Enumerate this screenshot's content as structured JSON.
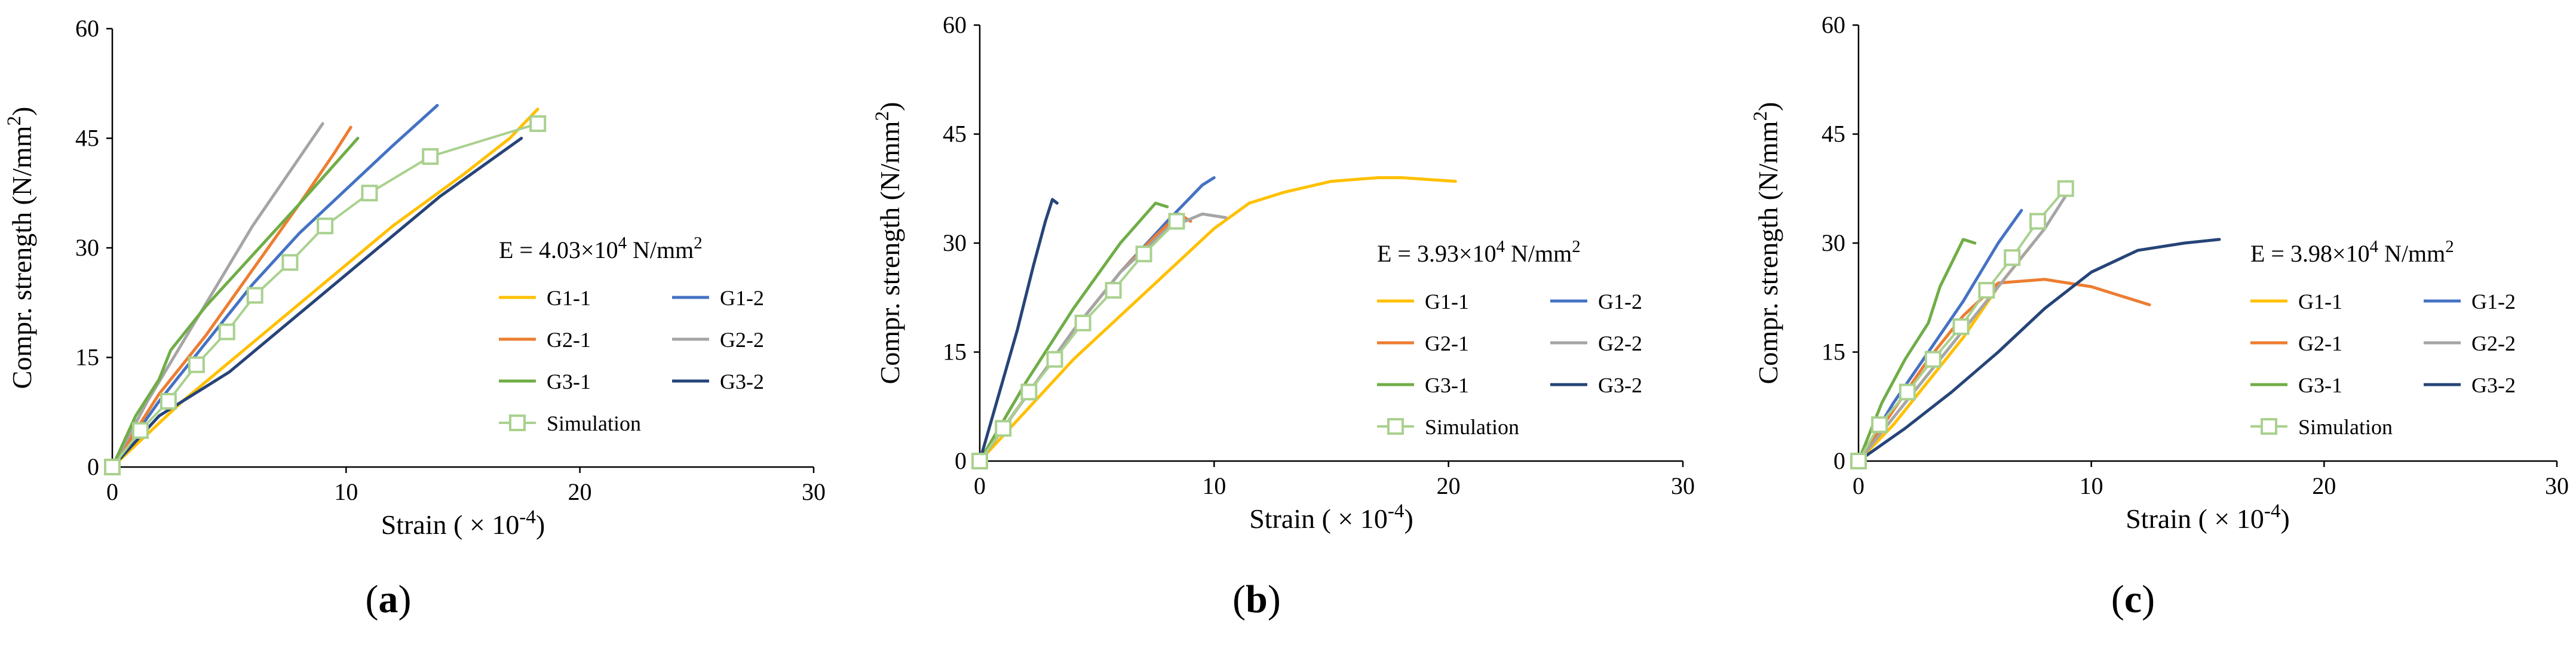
{
  "chart_data": [
    {
      "type": "line",
      "panel_label": "(a)",
      "xlabel": "Strain ( × 10-4)",
      "ylabel": "Compr. strength (N/mm2)",
      "xlim": [
        0,
        30
      ],
      "ylim": [
        0,
        60
      ],
      "xticks": [
        0,
        10,
        20,
        30
      ],
      "yticks": [
        0,
        15,
        30,
        45,
        60
      ],
      "annotation": "E = 4.03×104 N/mm2",
      "legend_position": "bottom-right",
      "series": [
        {
          "name": "G1-1",
          "color": "#FFC000",
          "x": [
            0,
            3,
            6,
            9,
            12,
            15,
            17,
            18.2
          ],
          "y": [
            0,
            9,
            17,
            25,
            33,
            40,
            45,
            49
          ]
        },
        {
          "name": "G1-2",
          "color": "#4472C4",
          "x": [
            0,
            2,
            4,
            6,
            8,
            10,
            12,
            13.9
          ],
          "y": [
            0,
            9,
            17,
            25,
            32,
            38,
            44,
            49.5
          ]
        },
        {
          "name": "G2-1",
          "color": "#ED7D31",
          "x": [
            0,
            2,
            4,
            6,
            8,
            9.5,
            10.2
          ],
          "y": [
            0,
            10,
            18,
            27,
            36,
            43,
            46.5
          ]
        },
        {
          "name": "G2-2",
          "color": "#A5A5A5",
          "x": [
            0,
            1.5,
            3,
            4.5,
            6,
            7.5,
            9
          ],
          "y": [
            0,
            9,
            17,
            25,
            33,
            40,
            47
          ]
        },
        {
          "name": "G3-1",
          "color": "#70AD47",
          "x": [
            0,
            1,
            2,
            2.5,
            4,
            6,
            8,
            10.5
          ],
          "y": [
            0,
            7,
            12,
            16,
            22,
            29,
            36,
            45
          ]
        },
        {
          "name": "G3-2",
          "color": "#264478",
          "x": [
            0,
            2,
            5,
            8,
            11,
            14,
            17.5
          ],
          "y": [
            0,
            7,
            13,
            21,
            29,
            37,
            45
          ]
        },
        {
          "name": "Simulation",
          "color": "#A9D18E",
          "marker": "square",
          "x": [
            0,
            1.2,
            2.4,
            3.6,
            4.9,
            6.1,
            7.6,
            9.1,
            11,
            13.6,
            18.2
          ],
          "y": [
            0,
            5,
            9,
            14,
            18.5,
            23.5,
            28,
            33,
            37.5,
            42.5,
            47
          ]
        }
      ]
    },
    {
      "type": "line",
      "panel_label": "(b)",
      "xlabel": "Strain ( × 10-4)",
      "ylabel": "Compr. strength (N/mm2)",
      "xlim": [
        0,
        30
      ],
      "ylim": [
        0,
        60
      ],
      "xticks": [
        0,
        10,
        20,
        30
      ],
      "yticks": [
        0,
        15,
        30,
        45,
        60
      ],
      "annotation": "E = 3.93×104 N/mm2",
      "legend_position": "bottom-right",
      "series": [
        {
          "name": "G1-1",
          "color": "#FFC000",
          "x": [
            0,
            2,
            4,
            6,
            8,
            9,
            10,
            11.5,
            13,
            15,
            17,
            18,
            20.3
          ],
          "y": [
            0,
            7,
            14,
            20,
            26,
            29,
            32,
            35.5,
            37,
            38.5,
            39,
            39,
            38.5
          ]
        },
        {
          "name": "G1-2",
          "color": "#4472C4",
          "x": [
            0,
            2,
            4,
            6,
            8,
            9.5,
            10
          ],
          "y": [
            0,
            9,
            18,
            26,
            33,
            38,
            39
          ]
        },
        {
          "name": "G2-1",
          "color": "#ED7D31",
          "x": [
            0,
            2,
            4,
            6,
            7.5,
            8.5,
            9
          ],
          "y": [
            0,
            9,
            18,
            26,
            31,
            34,
            33
          ]
        },
        {
          "name": "G2-2",
          "color": "#A5A5A5",
          "x": [
            0,
            2,
            4,
            6,
            8,
            9.5,
            10.5
          ],
          "y": [
            0,
            9,
            18,
            26,
            32,
            34,
            33.5
          ]
        },
        {
          "name": "G3-1",
          "color": "#70AD47",
          "x": [
            0,
            2,
            4,
            6,
            7.5,
            8
          ],
          "y": [
            0,
            11,
            21,
            30,
            35.5,
            35
          ]
        },
        {
          "name": "G3-2",
          "color": "#264478",
          "x": [
            0,
            0.8,
            1.6,
            2.3,
            2.8,
            3.1,
            3.3
          ],
          "y": [
            0,
            9,
            18,
            27,
            33,
            36,
            35.5
          ]
        },
        {
          "name": "Simulation",
          "color": "#A9D18E",
          "marker": "square",
          "x": [
            0,
            1,
            2.1,
            3.2,
            4.4,
            5.7,
            7,
            8.4
          ],
          "y": [
            0,
            4.5,
            9.5,
            14,
            19,
            23.5,
            28.5,
            33
          ]
        }
      ]
    },
    {
      "type": "line",
      "panel_label": "(c)",
      "xlabel": "Strain ( × 10-4)",
      "ylabel": "Compr. strength (N/mm2)",
      "xlim": [
        0,
        30
      ],
      "ylim": [
        0,
        60
      ],
      "xticks": [
        0,
        10,
        20,
        30
      ],
      "yticks": [
        0,
        15,
        30,
        45,
        60
      ],
      "annotation": "E = 3.98×104 N/mm2",
      "legend_position": "bottom-right",
      "series": [
        {
          "name": "G1-1",
          "color": "#FFC000",
          "x": [
            0,
            1.5,
            3,
            4.5,
            6,
            7.5
          ],
          "y": [
            0,
            5,
            11,
            17,
            24,
            30
          ]
        },
        {
          "name": "G1-2",
          "color": "#4472C4",
          "x": [
            0,
            1.5,
            3,
            4.5,
            6,
            7
          ],
          "y": [
            0,
            8,
            15,
            22,
            30,
            34.5
          ]
        },
        {
          "name": "G2-1",
          "color": "#ED7D31",
          "x": [
            0,
            1.5,
            3,
            4.5,
            6,
            8,
            10,
            12.5
          ],
          "y": [
            0,
            7,
            14,
            20,
            24.5,
            25,
            24,
            21.5
          ]
        },
        {
          "name": "G2-2",
          "color": "#A5A5A5",
          "x": [
            0,
            2,
            4,
            6,
            8,
            9
          ],
          "y": [
            0,
            8,
            16,
            24,
            32,
            37
          ]
        },
        {
          "name": "G3-1",
          "color": "#70AD47",
          "x": [
            0,
            1,
            2,
            3,
            3.5,
            4.5,
            5
          ],
          "y": [
            0,
            8,
            14,
            19,
            24,
            30.5,
            30
          ]
        },
        {
          "name": "G3-2",
          "color": "#264478",
          "x": [
            0,
            2,
            4,
            6,
            8,
            10,
            12,
            14,
            15.5
          ],
          "y": [
            0,
            4.5,
            9.5,
            15,
            21,
            26,
            29,
            30,
            30.5
          ]
        },
        {
          "name": "Simulation",
          "color": "#A9D18E",
          "marker": "square",
          "x": [
            0,
            0.9,
            2.1,
            3.2,
            4.4,
            5.5,
            6.6,
            7.7,
            8.9
          ],
          "y": [
            0,
            5,
            9.5,
            14,
            18.5,
            23.5,
            28,
            33,
            37.5
          ]
        }
      ]
    }
  ]
}
